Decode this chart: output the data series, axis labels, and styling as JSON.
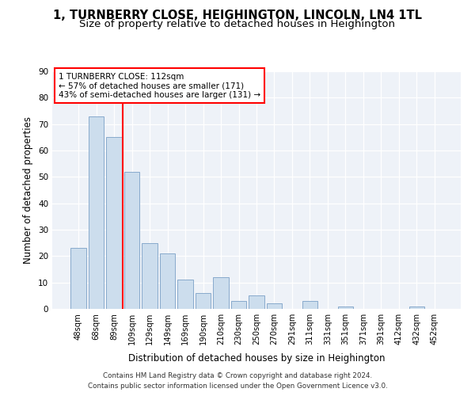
{
  "title": "1, TURNBERRY CLOSE, HEIGHINGTON, LINCOLN, LN4 1TL",
  "subtitle": "Size of property relative to detached houses in Heighington",
  "xlabel": "Distribution of detached houses by size in Heighington",
  "ylabel": "Number of detached properties",
  "categories": [
    "48sqm",
    "68sqm",
    "89sqm",
    "109sqm",
    "129sqm",
    "149sqm",
    "169sqm",
    "190sqm",
    "210sqm",
    "230sqm",
    "250sqm",
    "270sqm",
    "291sqm",
    "311sqm",
    "331sqm",
    "351sqm",
    "371sqm",
    "391sqm",
    "412sqm",
    "432sqm",
    "452sqm"
  ],
  "values": [
    23,
    73,
    65,
    52,
    25,
    21,
    11,
    6,
    12,
    3,
    5,
    2,
    0,
    3,
    0,
    1,
    0,
    0,
    0,
    1,
    0
  ],
  "bar_color": "#ccdded",
  "bar_edge_color": "#88aacc",
  "red_line_x": 2.5,
  "annotation_line1": "1 TURNBERRY CLOSE: 112sqm",
  "annotation_line2": "← 57% of detached houses are smaller (171)",
  "annotation_line3": "43% of semi-detached houses are larger (131) →",
  "ylim": [
    0,
    90
  ],
  "yticks": [
    0,
    10,
    20,
    30,
    40,
    50,
    60,
    70,
    80,
    90
  ],
  "footnote1": "Contains HM Land Registry data © Crown copyright and database right 2024.",
  "footnote2": "Contains public sector information licensed under the Open Government Licence v3.0.",
  "background_color": "#eef2f8",
  "title_fontsize": 10.5,
  "subtitle_fontsize": 9.5,
  "ylabel_fontsize": 8.5,
  "xlabel_fontsize": 8.5
}
